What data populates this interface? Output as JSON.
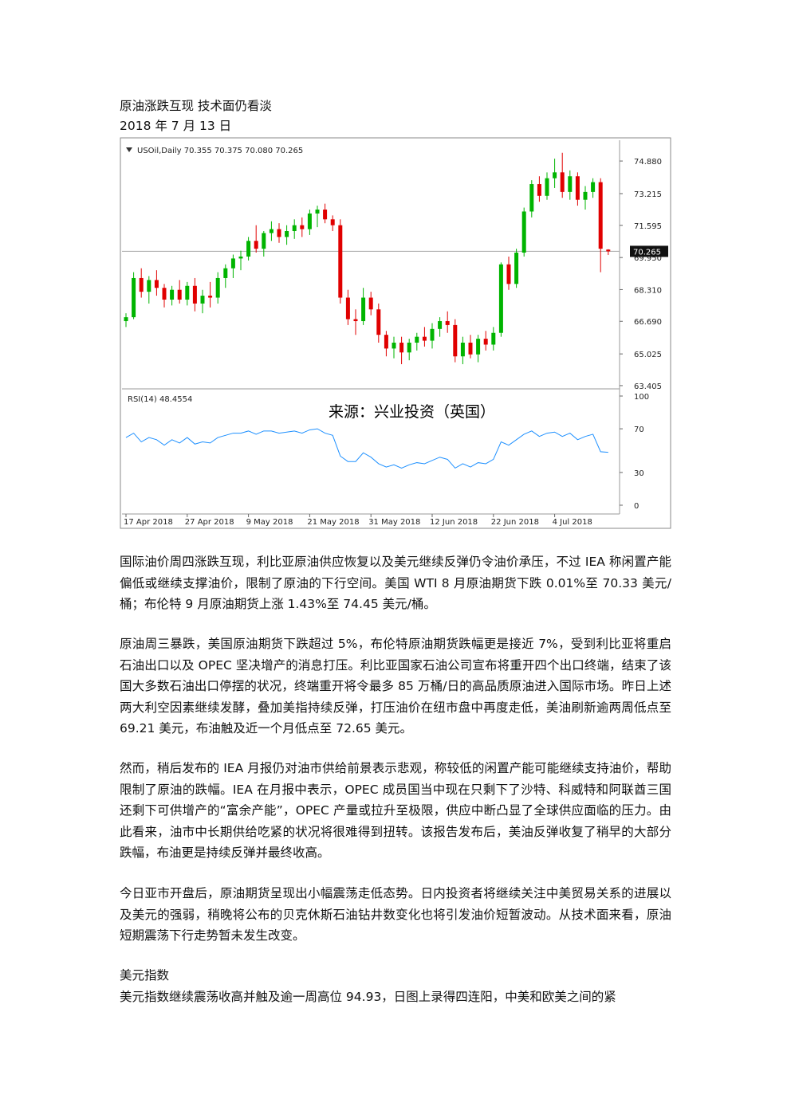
{
  "title": "原油涨跌互现  技术面仍看淡",
  "date": "2018 年 7 月 13 日",
  "chart_data": {
    "type": "candlestick",
    "header": "USOil,Daily  70.355 70.375 70.080 70.265",
    "watermark": "来源：兴业投资（英国）",
    "up_color": "#00b400",
    "down_color": "#e00000",
    "categories": [
      "17 Apr 2018",
      null,
      null,
      null,
      null,
      null,
      null,
      null,
      "27 Apr 2018",
      null,
      null,
      null,
      null,
      null,
      null,
      null,
      "9 May 2018",
      null,
      null,
      null,
      null,
      null,
      null,
      null,
      "21 May 2018",
      null,
      null,
      null,
      null,
      null,
      null,
      null,
      "31 May 2018",
      null,
      null,
      null,
      null,
      null,
      null,
      null,
      "12 Jun 2018",
      null,
      null,
      null,
      null,
      null,
      null,
      null,
      "22 Jun 2018",
      null,
      null,
      null,
      null,
      null,
      null,
      null,
      "4 Jul 2018",
      null,
      null,
      null,
      null,
      null,
      null,
      null
    ],
    "candles": [
      [
        66.7,
        67.1,
        66.4,
        66.9
      ],
      [
        66.9,
        69.2,
        66.8,
        68.9
      ],
      [
        68.9,
        69.4,
        67.9,
        68.2
      ],
      [
        68.2,
        69.0,
        67.6,
        68.8
      ],
      [
        68.8,
        69.3,
        68.0,
        68.4
      ],
      [
        68.4,
        68.6,
        67.4,
        67.8
      ],
      [
        67.8,
        68.5,
        67.5,
        68.3
      ],
      [
        68.3,
        68.8,
        67.6,
        67.8
      ],
      [
        67.8,
        68.7,
        67.5,
        68.5
      ],
      [
        68.5,
        68.9,
        67.2,
        67.6
      ],
      [
        67.6,
        68.3,
        67.1,
        68.0
      ],
      [
        68.0,
        68.7,
        67.4,
        67.9
      ],
      [
        67.9,
        69.2,
        67.6,
        68.9
      ],
      [
        68.9,
        69.6,
        68.4,
        69.4
      ],
      [
        69.4,
        70.1,
        68.9,
        69.9
      ],
      [
        69.9,
        70.3,
        69.3,
        70.0
      ],
      [
        70.0,
        71.0,
        69.8,
        70.8
      ],
      [
        70.8,
        71.6,
        70.2,
        70.4
      ],
      [
        70.4,
        71.3,
        70.0,
        71.2
      ],
      [
        71.2,
        71.8,
        70.8,
        71.4
      ],
      [
        71.4,
        71.7,
        70.7,
        71.0
      ],
      [
        71.0,
        71.6,
        70.6,
        71.3
      ],
      [
        71.3,
        71.9,
        70.9,
        71.6
      ],
      [
        71.6,
        72.0,
        71.0,
        71.4
      ],
      [
        71.4,
        72.4,
        71.1,
        72.2
      ],
      [
        72.2,
        72.6,
        71.5,
        72.4
      ],
      [
        72.4,
        72.7,
        71.7,
        71.9
      ],
      [
        71.9,
        72.1,
        71.3,
        71.6
      ],
      [
        71.6,
        71.9,
        67.6,
        67.9
      ],
      [
        67.9,
        68.3,
        66.5,
        66.8
      ],
      [
        66.8,
        67.3,
        66.0,
        66.7
      ],
      [
        66.7,
        68.4,
        66.5,
        67.9
      ],
      [
        67.9,
        68.2,
        67.0,
        67.3
      ],
      [
        67.3,
        67.6,
        65.6,
        66.0
      ],
      [
        66.0,
        66.2,
        64.9,
        65.3
      ],
      [
        65.3,
        65.9,
        64.8,
        65.6
      ],
      [
        65.6,
        65.9,
        64.5,
        65.1
      ],
      [
        65.1,
        65.8,
        64.7,
        65.6
      ],
      [
        65.6,
        66.1,
        65.2,
        65.9
      ],
      [
        65.9,
        66.4,
        65.4,
        65.7
      ],
      [
        65.7,
        66.6,
        65.3,
        66.3
      ],
      [
        66.3,
        66.9,
        65.9,
        66.7
      ],
      [
        66.7,
        67.2,
        66.1,
        66.5
      ],
      [
        66.5,
        66.8,
        64.6,
        64.9
      ],
      [
        64.9,
        65.9,
        64.5,
        65.6
      ],
      [
        65.6,
        66.0,
        64.8,
        65.0
      ],
      [
        65.0,
        66.0,
        64.6,
        65.8
      ],
      [
        65.8,
        66.2,
        65.2,
        65.5
      ],
      [
        65.5,
        66.4,
        65.2,
        66.1
      ],
      [
        66.1,
        69.7,
        65.9,
        69.6
      ],
      [
        69.6,
        70.0,
        68.3,
        68.6
      ],
      [
        68.6,
        70.4,
        68.4,
        70.2
      ],
      [
        70.2,
        72.5,
        70.0,
        72.3
      ],
      [
        72.3,
        73.9,
        72.0,
        73.7
      ],
      [
        73.7,
        74.1,
        72.8,
        73.1
      ],
      [
        73.1,
        74.3,
        72.9,
        74.0
      ],
      [
        74.0,
        75.0,
        73.5,
        74.3
      ],
      [
        74.3,
        75.3,
        73.0,
        73.3
      ],
      [
        73.3,
        74.4,
        72.9,
        74.1
      ],
      [
        74.1,
        74.3,
        72.6,
        72.9
      ],
      [
        72.9,
        73.6,
        72.4,
        73.3
      ],
      [
        73.3,
        74.0,
        73.0,
        73.8
      ],
      [
        73.8,
        74.0,
        69.2,
        70.4
      ],
      [
        70.355,
        70.375,
        70.08,
        70.265
      ]
    ],
    "ylim": [
      63.28,
      75.86
    ],
    "yticks": [
      {
        "value": 74.88,
        "label": "74.880"
      },
      {
        "value": 73.215,
        "label": "73.215"
      },
      71.595,
      {
        "value": 69.95,
        "label": "69.950"
      },
      {
        "value": 68.31,
        "label": "68.310"
      },
      {
        "value": 66.69,
        "label": "66.690"
      },
      65.025,
      63.405
    ],
    "last_price": 70.265,
    "rsi": {
      "label": "RSI(14) 48.4554",
      "color": "#1e90ff",
      "ylim": [
        0,
        100
      ],
      "yticks": [
        100,
        70,
        30,
        0
      ],
      "values": [
        62,
        66,
        58,
        62,
        60,
        55,
        60,
        57,
        62,
        56,
        58,
        57,
        62,
        64,
        66,
        66,
        68,
        65,
        68,
        68,
        66,
        67,
        68,
        66,
        69,
        70,
        66,
        64,
        45,
        40,
        40,
        48,
        44,
        38,
        35,
        37,
        34,
        37,
        39,
        38,
        41,
        44,
        42,
        34,
        38,
        35,
        39,
        38,
        42,
        58,
        55,
        60,
        65,
        68,
        63,
        66,
        67,
        63,
        66,
        60,
        63,
        65,
        49,
        48.4554
      ]
    }
  },
  "paragraphs": [
    "国际油价周四涨跌互现，利比亚原油供应恢复以及美元继续反弹仍令油价承压，不过 IEA 称闲置产能偏低或继续支撑油价，限制了原油的下行空间。美国 WTI 8 月原油期货下跌 0.01%至 70.33 美元/桶；布伦特 9 月原油期货上涨 1.43%至 74.45 美元/桶。",
    "原油周三暴跌，美国原油期货下跌超过 5%，布伦特原油期货跌幅更是接近 7%，受到利比亚将重启石油出口以及 OPEC 坚决增产的消息打压。利比亚国家石油公司宣布将重开四个出口终端，结束了该国大多数石油出口停摆的状况，终端重开将令最多 85 万桶/日的高品质原油进入国际市场。昨日上述两大利空因素继续发酵，叠加美指持续反弹，打压油价在纽市盘中再度走低，美油刷新逾两周低点至 69.21 美元，布油触及近一个月低点至 72.65 美元。",
    "然而，稍后发布的 IEA 月报仍对油市供给前景表示悲观，称较低的闲置产能可能继续支持油价，帮助限制了原油的跌幅。IEA 在月报中表示，OPEC 成员国当中现在只剩下了沙特、科威特和阿联酋三国还剩下可供增产的“富余产能”，OPEC 产量或拉升至极限，供应中断凸显了全球供应面临的压力。由此看来，油市中长期供给吃紧的状况将很难得到扭转。该报告发布后，美油反弹收复了稍早的大部分跌幅，布油更是持续反弹并最终收高。",
    "今日亚市开盘后，原油期货呈现出小幅震荡走低态势。日内投资者将继续关注中美贸易关系的进展以及美元的强弱，稍晚将公布的贝克休斯石油钻井数变化也将引发油价短暂波动。从技术面来看，原油短期震荡下行走势暂未发生改变。"
  ],
  "section_heading": "美元指数",
  "section_paragraph": "美元指数继续震荡收高并触及逾一周高位 94.93，日图上录得四连阳，中美和欧美之间的紧"
}
